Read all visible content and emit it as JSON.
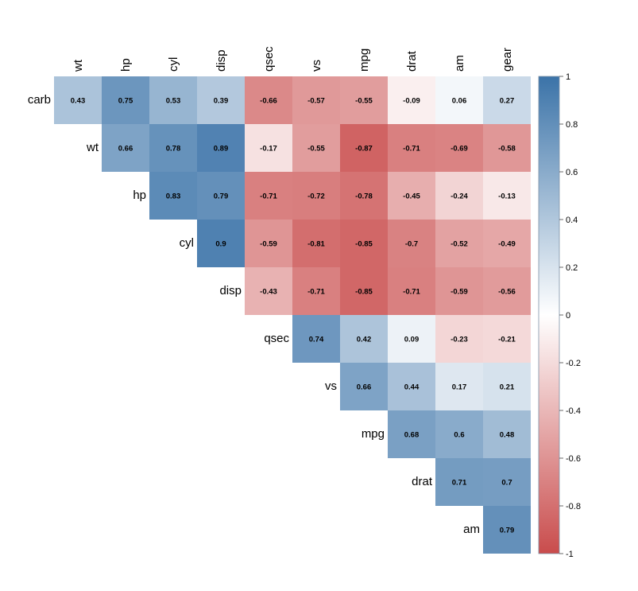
{
  "chart_data": {
    "type": "heatmap",
    "title": "",
    "xlabel": "",
    "ylabel": "",
    "columns": [
      "wt",
      "hp",
      "cyl",
      "disp",
      "qsec",
      "vs",
      "mpg",
      "drat",
      "am",
      "gear"
    ],
    "rows": [
      "carb",
      "wt",
      "hp",
      "cyl",
      "disp",
      "qsec",
      "vs",
      "mpg",
      "drat",
      "am"
    ],
    "values": [
      [
        0.43,
        0.75,
        0.53,
        0.39,
        -0.66,
        -0.57,
        -0.55,
        -0.09,
        0.06,
        0.27
      ],
      [
        null,
        0.66,
        0.78,
        0.89,
        -0.17,
        -0.55,
        -0.87,
        -0.71,
        -0.69,
        -0.58
      ],
      [
        null,
        null,
        0.83,
        0.79,
        -0.71,
        -0.72,
        -0.78,
        -0.45,
        -0.24,
        -0.13
      ],
      [
        null,
        null,
        null,
        0.9,
        -0.59,
        -0.81,
        -0.85,
        -0.7,
        -0.52,
        -0.49
      ],
      [
        null,
        null,
        null,
        null,
        -0.43,
        -0.71,
        -0.85,
        -0.71,
        -0.59,
        -0.56
      ],
      [
        null,
        null,
        null,
        null,
        null,
        0.74,
        0.42,
        0.09,
        -0.23,
        -0.21
      ],
      [
        null,
        null,
        null,
        null,
        null,
        null,
        0.66,
        0.44,
        0.17,
        0.21
      ],
      [
        null,
        null,
        null,
        null,
        null,
        null,
        null,
        0.68,
        0.6,
        0.48
      ],
      [
        null,
        null,
        null,
        null,
        null,
        null,
        null,
        null,
        0.71,
        0.7
      ],
      [
        null,
        null,
        null,
        null,
        null,
        null,
        null,
        null,
        null,
        0.79
      ]
    ],
    "color_scale": {
      "min": -1,
      "max": 1,
      "low_color": "#c94c4c",
      "mid_color": "#ffffff",
      "high_color": "#3b73a8",
      "ticks": [
        "1",
        "0.8",
        "0.6",
        "0.4",
        "0.2",
        "0",
        "-0.2",
        "-0.4",
        "-0.6",
        "-0.8",
        "-1"
      ]
    },
    "legend_position": "right",
    "grid": false
  }
}
